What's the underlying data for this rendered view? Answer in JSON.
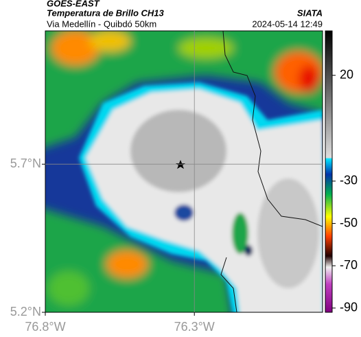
{
  "header": {
    "title": "GOES-EAST",
    "subtitle": "Temperatura de Brillo CH13",
    "source": "SIATA",
    "region": "Via Medellín - Quibdó 50km",
    "timestamp": "2024-05-14 12:49"
  },
  "map": {
    "xlim": [
      -76.8,
      -75.87
    ],
    "ylim": [
      5.2,
      6.15
    ],
    "xticks": [
      {
        "value": -76.8,
        "label": "76.8°W"
      },
      {
        "value": -76.3,
        "label": "76.3°W"
      }
    ],
    "yticks": [
      {
        "value": 5.2,
        "label": "5.2°N"
      },
      {
        "value": 5.7,
        "label": "5.7°N"
      }
    ],
    "grid": true
  },
  "colorbar": {
    "range": [
      41,
      -92
    ],
    "ticks": [
      20,
      -30,
      -50,
      -70,
      -90
    ]
  }
}
